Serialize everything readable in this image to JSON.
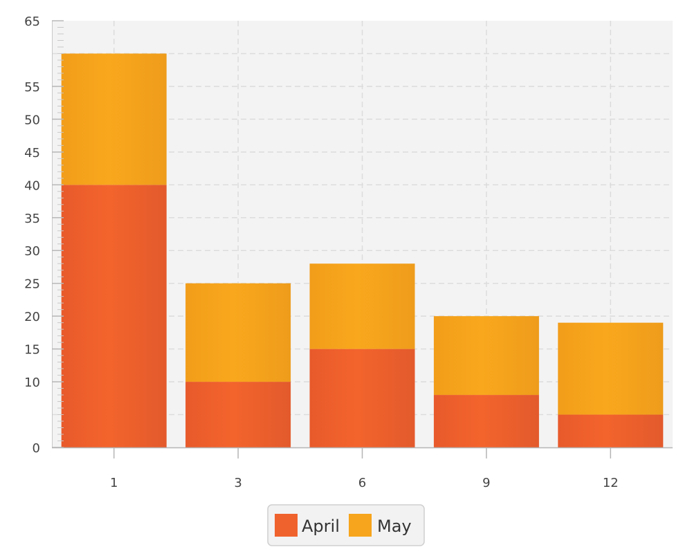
{
  "chart_data": {
    "type": "bar",
    "stacked": true,
    "categories": [
      "1",
      "3",
      "6",
      "9",
      "12"
    ],
    "series": [
      {
        "name": "April",
        "values": [
          40,
          10,
          15,
          8,
          5
        ],
        "color": "#f0622d"
      },
      {
        "name": "May",
        "values": [
          20,
          15,
          13,
          12,
          14
        ],
        "color": "#f7a51c"
      }
    ],
    "ylim": [
      0,
      65
    ],
    "y_tick_labels": [
      "0",
      "10",
      "15",
      "20",
      "25",
      "30",
      "35",
      "40",
      "45",
      "50",
      "55",
      "65"
    ],
    "y_tick_values": [
      0,
      10,
      15,
      20,
      25,
      30,
      35,
      40,
      45,
      50,
      55,
      65
    ],
    "y_grid_values": [
      5,
      10,
      15,
      20,
      25,
      30,
      35,
      40,
      45,
      50,
      55,
      60
    ],
    "grid": true,
    "legend_placement": "bottom-center",
    "plot_background": "#f3f3f3"
  }
}
